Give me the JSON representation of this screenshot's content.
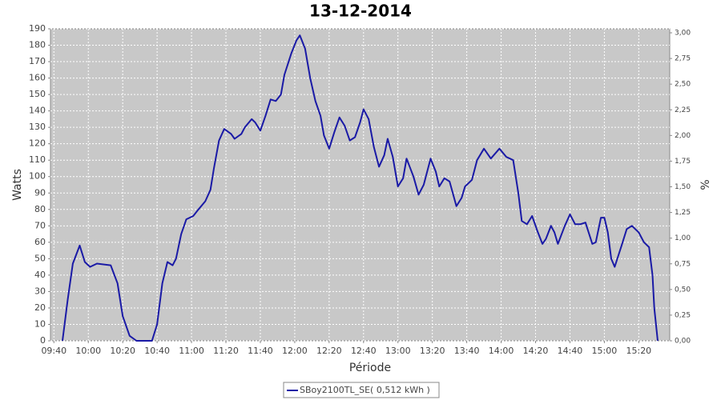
{
  "chart_data": {
    "type": "line",
    "title": "13-12-2014",
    "xlabel": "Période",
    "ylabel": "Watts",
    "y2label": "%",
    "x": [
      "09:45",
      "09:48",
      "09:51",
      "09:55",
      "09:58",
      "10:01",
      "10:05",
      "10:13",
      "10:17",
      "10:20",
      "10:24",
      "10:28",
      "10:37",
      "10:40",
      "10:43",
      "10:46",
      "10:49",
      "10:51",
      "10:54",
      "10:57",
      "11:01",
      "11:04",
      "11:08",
      "11:11",
      "11:13",
      "11:16",
      "11:19",
      "11:23",
      "11:25",
      "11:29",
      "11:31",
      "11:35",
      "11:37",
      "11:40",
      "11:43",
      "11:46",
      "11:49",
      "11:52",
      "11:54",
      "11:58",
      "12:01",
      "12:03",
      "12:06",
      "12:09",
      "12:12",
      "12:15",
      "12:17",
      "12:20",
      "12:23",
      "12:26",
      "12:29",
      "12:32",
      "12:35",
      "12:38",
      "12:40",
      "12:43",
      "12:46",
      "12:49",
      "12:52",
      "12:54",
      "12:57",
      "13:00",
      "13:03",
      "13:05",
      "13:09",
      "13:12",
      "13:15",
      "13:19",
      "13:22",
      "13:24",
      "13:27",
      "13:30",
      "13:34",
      "13:37",
      "13:39",
      "13:43",
      "13:46",
      "13:50",
      "13:54",
      "13:59",
      "14:03",
      "14:07",
      "14:10",
      "14:12",
      "14:15",
      "14:18",
      "14:21",
      "14:24",
      "14:26",
      "14:29",
      "14:31",
      "14:33",
      "14:37",
      "14:40",
      "14:43",
      "14:46",
      "14:49",
      "14:53",
      "14:55",
      "14:58",
      "15:00",
      "15:02",
      "15:04",
      "15:06",
      "15:10",
      "15:13",
      "15:16",
      "15:20",
      "15:23",
      "15:26",
      "15:28",
      "15:29",
      "15:31"
    ],
    "series": [
      {
        "name": "SBoy2100TL_SE( 0,512 kWh )",
        "color": "#1a1aa6",
        "values": [
          0,
          25,
          47,
          58,
          48,
          45,
          47,
          46,
          35,
          15,
          3,
          0,
          0,
          10,
          35,
          48,
          46,
          50,
          65,
          74,
          76,
          80,
          85,
          92,
          105,
          122,
          129,
          126,
          123,
          126,
          130,
          135,
          133,
          128,
          137,
          147,
          146,
          150,
          162,
          175,
          183,
          186,
          178,
          160,
          146,
          137,
          125,
          117,
          127,
          136,
          131,
          122,
          124,
          133,
          141,
          135,
          118,
          106,
          113,
          123,
          112,
          94,
          99,
          111,
          100,
          89,
          95,
          111,
          103,
          94,
          99,
          97,
          82,
          87,
          94,
          98,
          110,
          117,
          111,
          117,
          112,
          110,
          90,
          73,
          71,
          76,
          67,
          59,
          62,
          70,
          66,
          59,
          70,
          77,
          71,
          71,
          72,
          59,
          60,
          75,
          75,
          66,
          50,
          45,
          58,
          68,
          70,
          66,
          60,
          57,
          40,
          20,
          0
        ]
      }
    ],
    "xlim": [
      "09:38",
      "15:38"
    ],
    "xticks": [
      "09:40",
      "10:00",
      "10:20",
      "10:40",
      "11:00",
      "11:20",
      "11:40",
      "12:00",
      "12:20",
      "12:40",
      "13:00",
      "13:20",
      "13:40",
      "14:00",
      "14:20",
      "14:40",
      "15:00",
      "15:20"
    ],
    "ylim": [
      0,
      190
    ],
    "yticks": [
      0,
      10,
      20,
      30,
      40,
      50,
      60,
      70,
      80,
      90,
      100,
      110,
      120,
      130,
      140,
      150,
      160,
      170,
      180,
      190
    ],
    "y2lim": [
      0,
      3.039
    ],
    "y2ticks": [
      {
        "value": 0,
        "label": "0,00"
      },
      {
        "value": 0.25,
        "label": "0,25"
      },
      {
        "value": 0.5,
        "label": "0,50"
      },
      {
        "value": 0.75,
        "label": "0,75"
      },
      {
        "value": 1,
        "label": "1,00"
      },
      {
        "value": 1.25,
        "label": "1,25"
      },
      {
        "value": 1.5,
        "label": "1,50"
      },
      {
        "value": 1.75,
        "label": "1,75"
      },
      {
        "value": 2,
        "label": "2,00"
      },
      {
        "value": 2.25,
        "label": "2,25"
      },
      {
        "value": 2.5,
        "label": "2,50"
      },
      {
        "value": 2.75,
        "label": "2,75"
      },
      {
        "value": 3,
        "label": "3,00"
      }
    ],
    "grid": true
  }
}
